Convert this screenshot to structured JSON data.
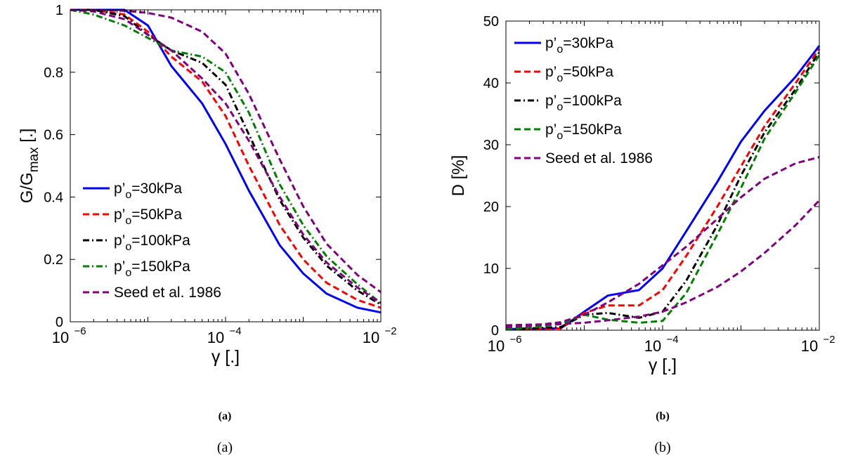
{
  "colors": {
    "blue": "#0000ff",
    "red": "#ff0000",
    "black": "#000000",
    "green": "#008000",
    "purple": "#800080"
  },
  "chart_data": [
    {
      "type": "line",
      "panel": "a",
      "xscale": "log",
      "xlim": [
        1e-06,
        0.01
      ],
      "ylim": [
        0,
        1
      ],
      "xlabel": "γ [.]",
      "ylabel": {
        "main": "G/G",
        "sub": "max",
        "tail": " [.]"
      },
      "xticks": [
        {
          "value": 1e-06,
          "base": "10",
          "exp": "−6"
        },
        {
          "value": 0.0001,
          "base": "10",
          "exp": "−4"
        },
        {
          "value": 0.01,
          "base": "10",
          "exp": "−2"
        }
      ],
      "yticks": [
        "0",
        "0.2",
        "0.4",
        "0.6",
        "0.8",
        "1"
      ],
      "legend_position": "bottom-left",
      "series": [
        {
          "name": {
            "pre": "p’",
            "sub": "o",
            "post": "=30kPa"
          },
          "color": "#0000ff",
          "dash": "solid",
          "x": [
            1e-06,
            2e-06,
            5e-06,
            1e-05,
            2e-05,
            5e-05,
            0.0001,
            0.0002,
            0.0005,
            0.001,
            0.002,
            0.005,
            0.01
          ],
          "y": [
            1,
            1,
            1,
            0.95,
            0.82,
            0.7,
            0.57,
            0.42,
            0.245,
            0.155,
            0.09,
            0.045,
            0.03
          ]
        },
        {
          "name": {
            "pre": "p’",
            "sub": "o",
            "post": "=50kPa"
          },
          "color": "#ff0000",
          "dash": "dash",
          "x": [
            1e-06,
            2e-06,
            5e-06,
            1e-05,
            2e-05,
            5e-05,
            0.0001,
            0.0002,
            0.0005,
            0.001,
            0.002,
            0.005,
            0.01
          ],
          "y": [
            1,
            1,
            0.985,
            0.93,
            0.85,
            0.77,
            0.66,
            0.5,
            0.31,
            0.2,
            0.125,
            0.07,
            0.045
          ]
        },
        {
          "name": {
            "pre": "p’",
            "sub": "o",
            "post": "=100kPa"
          },
          "color": "#000000",
          "dash": "dashdot",
          "x": [
            1e-06,
            2e-06,
            5e-06,
            1e-05,
            2e-05,
            5e-05,
            0.0001,
            0.0002,
            0.0005,
            0.001,
            0.002,
            0.005,
            0.01
          ],
          "y": [
            1,
            1,
            0.98,
            0.92,
            0.87,
            0.83,
            0.76,
            0.6,
            0.39,
            0.27,
            0.18,
            0.1,
            0.055
          ]
        },
        {
          "name": {
            "pre": "p’",
            "sub": "o",
            "post": "=150kPa"
          },
          "color": "#008000",
          "dash": "dashdot",
          "x": [
            1e-06,
            2e-06,
            5e-06,
            1e-05,
            2e-05,
            5e-05,
            0.0001,
            0.0002,
            0.0005,
            0.001,
            0.002,
            0.005,
            0.01
          ],
          "y": [
            1,
            0.985,
            0.95,
            0.91,
            0.87,
            0.85,
            0.8,
            0.67,
            0.44,
            0.31,
            0.21,
            0.12,
            0.06
          ]
        },
        {
          "name": "Seed et al. 1986",
          "color": "#800080",
          "dash": "dash",
          "x": [
            1e-06,
            2e-06,
            5e-06,
            1e-05,
            2e-05,
            5e-05,
            0.0001,
            0.0002,
            0.0005,
            0.001,
            0.002,
            0.005,
            0.01
          ],
          "y": [
            1,
            0.995,
            0.97,
            0.92,
            0.87,
            0.78,
            0.7,
            0.58,
            0.4,
            0.28,
            0.19,
            0.11,
            0.06
          ]
        },
        {
          "name": "",
          "color": "#800080",
          "dash": "dash",
          "legend": false,
          "x": [
            1e-06,
            2e-06,
            5e-06,
            1e-05,
            2e-05,
            5e-05,
            0.0001,
            0.0002,
            0.0005,
            0.001,
            0.002,
            0.005,
            0.01
          ],
          "y": [
            1,
            1,
            0.997,
            0.99,
            0.975,
            0.93,
            0.86,
            0.73,
            0.52,
            0.37,
            0.25,
            0.15,
            0.095
          ]
        }
      ]
    },
    {
      "type": "line",
      "panel": "b",
      "xscale": "log",
      "xlim": [
        1e-06,
        0.01
      ],
      "ylim": [
        0,
        50
      ],
      "xlabel": "γ [.]",
      "ylabel": {
        "main": "D [%]",
        "sub": "",
        "tail": ""
      },
      "xticks": [
        {
          "value": 1e-06,
          "base": "10",
          "exp": "−6"
        },
        {
          "value": 0.0001,
          "base": "10",
          "exp": "−4"
        },
        {
          "value": 0.01,
          "base": "10",
          "exp": "−2"
        }
      ],
      "yticks": [
        "0",
        "10",
        "20",
        "30",
        "40",
        "50"
      ],
      "legend_position": "top-left",
      "series": [
        {
          "name": {
            "pre": "p’",
            "sub": "o",
            "post": "=30kPa"
          },
          "color": "#0000ff",
          "dash": "solid",
          "x": [
            1e-06,
            2e-06,
            5e-06,
            1e-05,
            2e-05,
            5e-05,
            0.0001,
            0.0002,
            0.0005,
            0.001,
            0.002,
            0.005,
            0.01
          ],
          "y": [
            0.2,
            0.2,
            0.3,
            3.0,
            5.6,
            6.5,
            10.0,
            16.0,
            24.0,
            30.5,
            35.5,
            41.0,
            46.0
          ]
        },
        {
          "name": {
            "pre": "p’",
            "sub": "o",
            "post": "=50kPa"
          },
          "color": "#ff0000",
          "dash": "dash",
          "x": [
            1e-06,
            2e-06,
            5e-06,
            1e-05,
            2e-05,
            5e-05,
            0.0001,
            0.0002,
            0.0005,
            0.001,
            0.002,
            0.005,
            0.01
          ],
          "y": [
            0.2,
            0.2,
            0.3,
            2.8,
            4.0,
            4.0,
            6.5,
            12.0,
            20.0,
            26.5,
            33.0,
            40.0,
            45.5
          ]
        },
        {
          "name": {
            "pre": "p’",
            "sub": "o",
            "post": "=100kPa"
          },
          "color": "#000000",
          "dash": "dashdot",
          "x": [
            1e-06,
            2e-06,
            5e-06,
            1e-05,
            2e-05,
            5e-05,
            0.0001,
            0.0002,
            0.0005,
            0.001,
            0.002,
            0.005,
            0.01
          ],
          "y": [
            0.2,
            0.3,
            0.5,
            2.5,
            2.8,
            2.0,
            3.0,
            8.0,
            17.0,
            25.0,
            32.0,
            39.0,
            45.0
          ]
        },
        {
          "name": {
            "pre": "p’",
            "sub": "o",
            "post": "=150kPa"
          },
          "color": "#008000",
          "dash": "dash",
          "x": [
            1e-06,
            2e-06,
            5e-06,
            1e-05,
            2e-05,
            5e-05,
            0.0001,
            0.0002,
            0.0005,
            0.001,
            0.002,
            0.005,
            0.01
          ],
          "y": [
            0.2,
            0.4,
            1.0,
            2.5,
            1.7,
            1.2,
            1.5,
            6.0,
            15.5,
            23.0,
            31.0,
            38.5,
            44.5
          ]
        },
        {
          "name": "Seed et al. 1986",
          "color": "#800080",
          "dash": "dash",
          "x": [
            1e-06,
            2e-06,
            5e-06,
            1e-05,
            2e-05,
            5e-05,
            0.0001,
            0.0002,
            0.0005,
            0.001,
            0.002,
            0.005,
            0.01
          ],
          "y": [
            0.5,
            0.7,
            1.3,
            2.5,
            4.5,
            7.5,
            10.5,
            13.5,
            18.0,
            21.5,
            24.5,
            27.0,
            28.0
          ]
        },
        {
          "name": "",
          "color": "#800080",
          "dash": "dash",
          "legend": false,
          "x": [
            1e-06,
            2e-06,
            5e-06,
            1e-05,
            2e-05,
            5e-05,
            0.0001,
            0.0002,
            0.0005,
            0.001,
            0.002,
            0.005,
            0.01
          ],
          "y": [
            0.8,
            0.9,
            1.0,
            1.2,
            1.6,
            2.2,
            3.0,
            4.5,
            7.0,
            9.5,
            12.5,
            17.0,
            21.0
          ]
        }
      ]
    }
  ],
  "captions": {
    "a_bold": "(a)",
    "b_bold": "(b)",
    "a": "(a)",
    "b": "(b)"
  }
}
